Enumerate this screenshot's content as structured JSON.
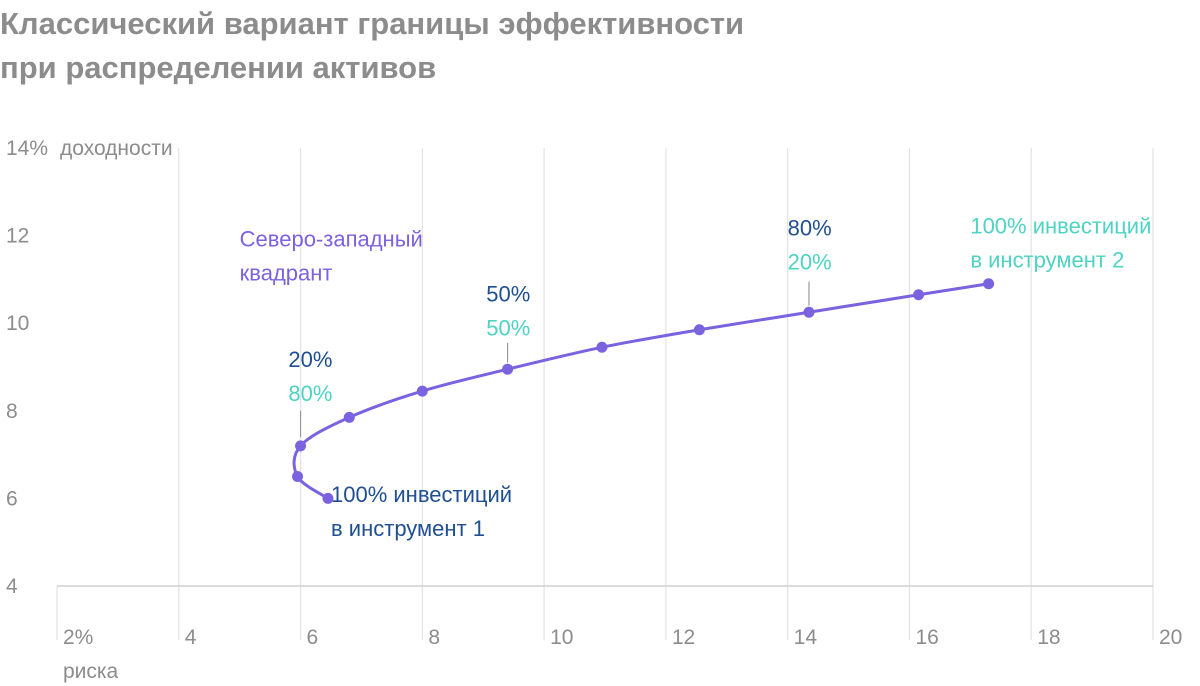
{
  "chart_data": {
    "type": "line",
    "title_lines": [
      "Классический вариант границы эффективности",
      "при распределении активов"
    ],
    "xlabel": "риска",
    "ylabel": "доходности",
    "xlim": [
      2,
      20
    ],
    "ylim": [
      4,
      14
    ],
    "x_ticks": [
      "2%",
      "4",
      "6",
      "8",
      "10",
      "12",
      "14",
      "16",
      "18",
      "20"
    ],
    "x_tick_values": [
      2,
      4,
      6,
      8,
      10,
      12,
      14,
      16,
      18,
      20
    ],
    "y_ticks": [
      "4",
      "6",
      "8",
      "10",
      "12",
      "14%"
    ],
    "y_tick_values": [
      4,
      6,
      8,
      10,
      12,
      14
    ],
    "grid": true,
    "series": [
      {
        "color": "#7b63e0",
        "points": [
          {
            "x": 6.45,
            "y": 6.0
          },
          {
            "x": 5.95,
            "y": 6.5
          },
          {
            "x": 6.0,
            "y": 7.2
          },
          {
            "x": 6.8,
            "y": 7.85
          },
          {
            "x": 8.0,
            "y": 8.45
          },
          {
            "x": 9.4,
            "y": 8.95
          },
          {
            "x": 10.95,
            "y": 9.45
          },
          {
            "x": 12.55,
            "y": 9.85
          },
          {
            "x": 14.35,
            "y": 10.25
          },
          {
            "x": 16.15,
            "y": 10.65
          },
          {
            "x": 17.3,
            "y": 10.9
          }
        ]
      }
    ],
    "annotations": [
      {
        "id": "northwest",
        "x": 5.0,
        "y": 11.75,
        "color": "#7b63e0",
        "lines": [
          "Северо-западный",
          "квадрант"
        ]
      },
      {
        "id": "instrument1",
        "x": 6.5,
        "y": 5.92,
        "color": "#1f4f91",
        "lines": [
          "100% инвестиций",
          "в инструмент 1"
        ]
      },
      {
        "id": "instrument2",
        "x": 17.0,
        "y": 12.05,
        "color": "#4ed3c3",
        "lines": [
          "100% инвестиций",
          "в инструмент 2"
        ]
      },
      {
        "id": "mix-20-80",
        "x": 5.8,
        "y": 9.0,
        "colors": [
          "#1f4f91",
          "#4ed3c3"
        ],
        "lines": [
          "20%",
          "80%"
        ],
        "leader": {
          "x": 6.0,
          "y1": 8.0,
          "y2": 7.4
        }
      },
      {
        "id": "mix-50-50",
        "x": 9.05,
        "y": 10.5,
        "colors": [
          "#1f4f91",
          "#4ed3c3"
        ],
        "lines": [
          "50%",
          "50%"
        ],
        "leader": {
          "x": 9.4,
          "y1": 9.55,
          "y2": 9.1
        }
      },
      {
        "id": "mix-80-20",
        "x": 14.0,
        "y": 12.0,
        "colors": [
          "#1f4f91",
          "#4ed3c3"
        ],
        "lines": [
          "80%",
          "20%"
        ],
        "leader": {
          "x": 14.35,
          "y1": 10.95,
          "y2": 10.4
        }
      }
    ]
  }
}
